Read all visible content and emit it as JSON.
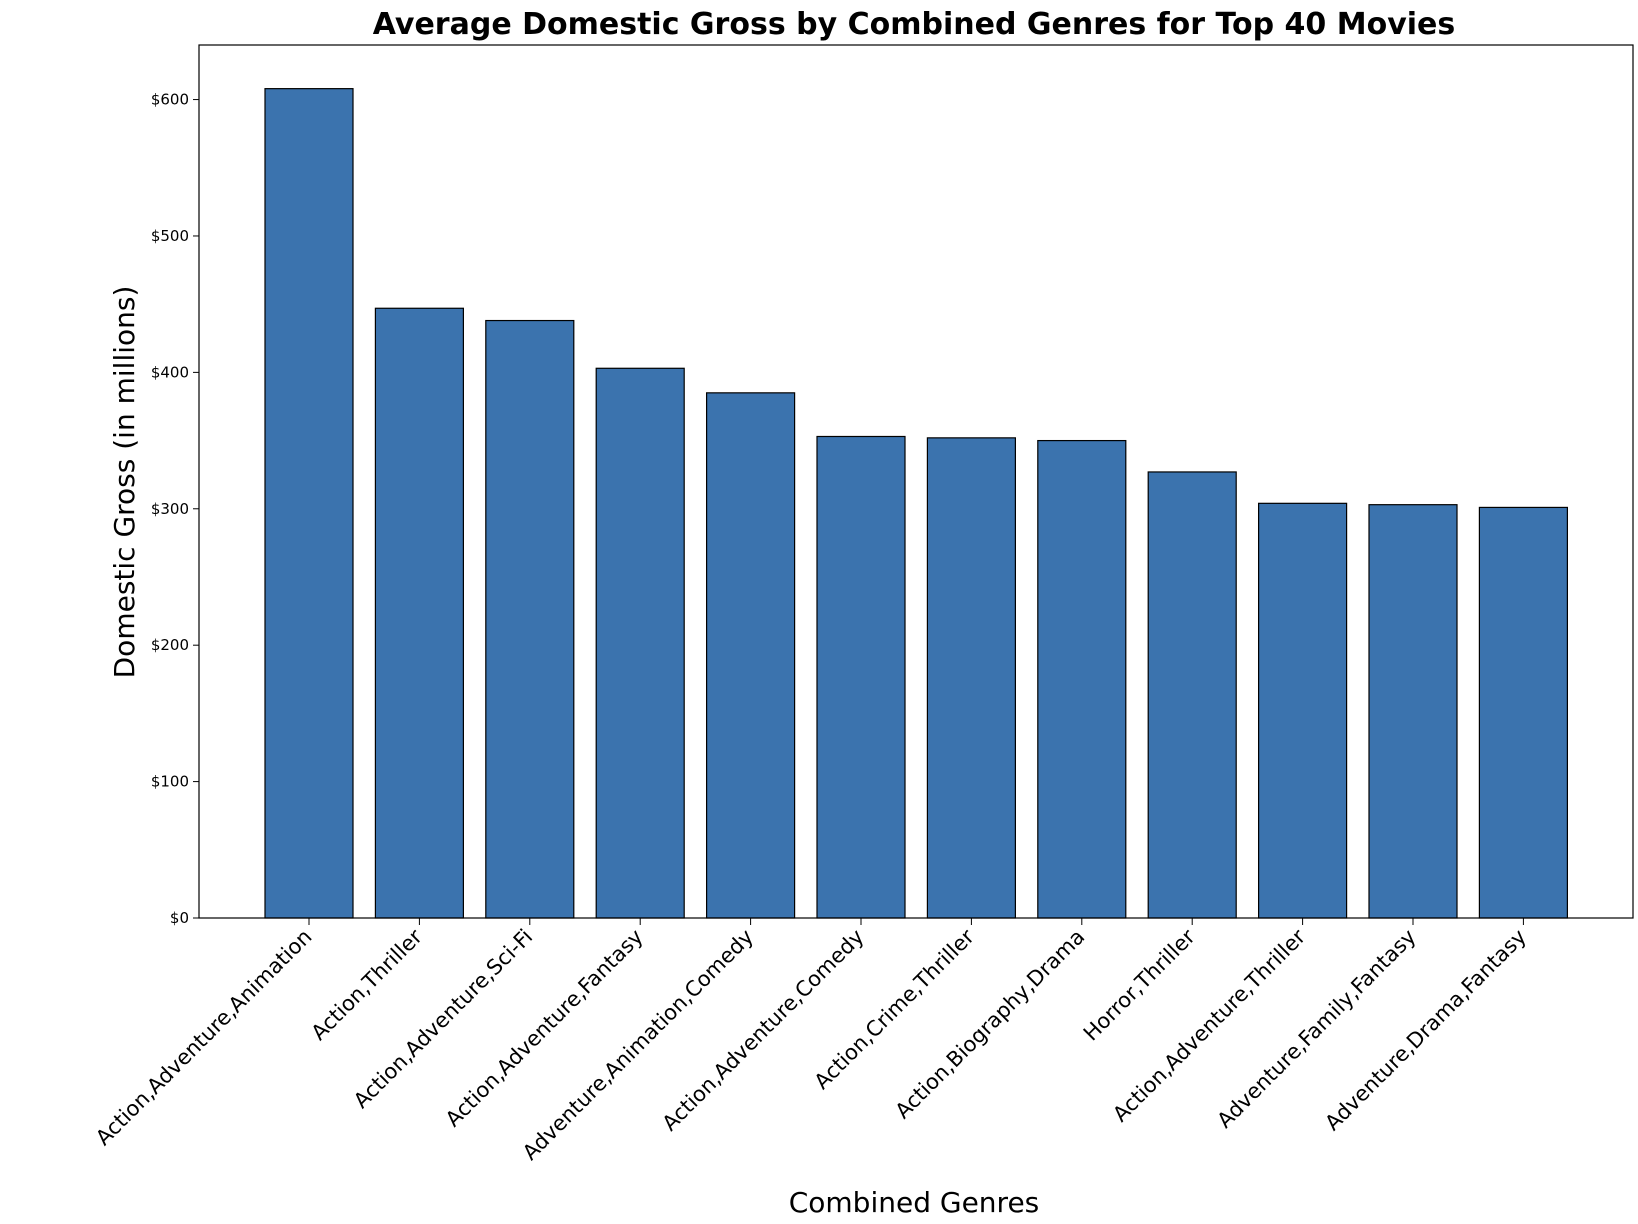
{
  "chart_data": {
    "type": "bar",
    "title": "Average Domestic Gross by Combined Genres for Top 40 Movies",
    "xlabel": "Combined Genres",
    "ylabel": "Domestic Gross (in millions)",
    "ylim": [
      0,
      640
    ],
    "yticks": [
      0,
      100,
      200,
      300,
      400,
      500,
      600
    ],
    "ytick_prefix": "$",
    "categories": [
      "Action,Adventure,Animation",
      "Action,Thriller",
      "Action,Adventure,Sci-Fi",
      "Action,Adventure,Fantasy",
      "Adventure,Animation,Comedy",
      "Action,Adventure,Comedy",
      "Action,Crime,Thriller",
      "Action,Biography,Drama",
      "Horror,Thriller",
      "Action,Adventure,Thriller",
      "Adventure,Family,Fantasy",
      "Adventure,Drama,Fantasy"
    ],
    "values": [
      608,
      447,
      438,
      403,
      385,
      353,
      352,
      350,
      327,
      304,
      303,
      301
    ],
    "bar_color": "#3b73ae",
    "edge_color": "#000000",
    "grid": false,
    "legend": "none"
  }
}
